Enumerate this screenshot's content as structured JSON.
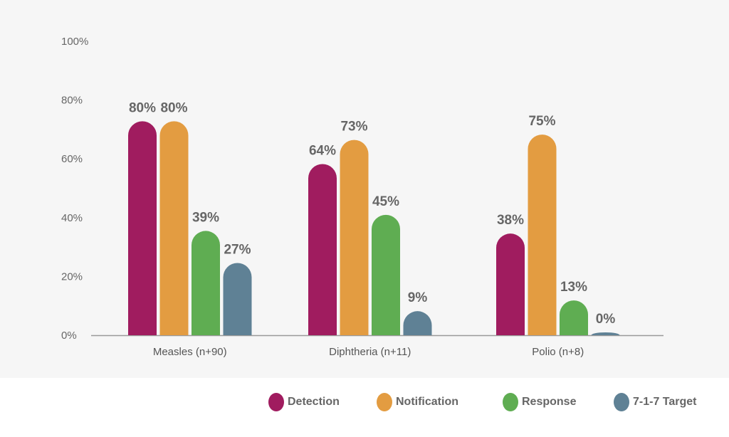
{
  "chart_data": {
    "type": "bar",
    "title": "",
    "xlabel": "",
    "ylabel": "",
    "ylim": [
      0,
      100
    ],
    "yticks": [
      "0%",
      "20%",
      "40%",
      "60%",
      "80%",
      "100%"
    ],
    "categories": [
      "Measles (n+90)",
      "Diphtheria (n+11)",
      "Polio (n+8)"
    ],
    "series": [
      {
        "name": "Detection",
        "color": "#a01c5f",
        "values": [
          80,
          64,
          38
        ],
        "labels": [
          "80%",
          "64%",
          "38%"
        ]
      },
      {
        "name": "Notification",
        "color": "#e39c41",
        "values": [
          80,
          73,
          75
        ],
        "labels": [
          "80%",
          "73%",
          "75%"
        ]
      },
      {
        "name": "Response",
        "color": "#5fad52",
        "values": [
          39,
          45,
          13
        ],
        "labels": [
          "39%",
          "45%",
          "13%"
        ]
      },
      {
        "name": "7-1-7 Target",
        "color": "#5f8195",
        "values": [
          27,
          9,
          0
        ],
        "labels": [
          "27%",
          "9%",
          "0%"
        ]
      }
    ],
    "legend_position": "bottom-right",
    "grid": false
  }
}
